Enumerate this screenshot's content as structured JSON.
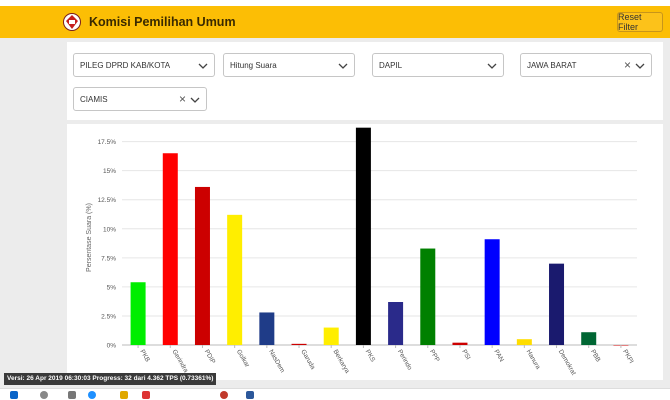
{
  "header": {
    "title": "Komisi Pemilihan Umum",
    "reset_label": "Reset Filter",
    "logo_icon": "kpu-logo-icon",
    "color": "#fcbe05"
  },
  "filters": [
    {
      "value": "PILEG DPRD KAB/KOTA",
      "clearable": false
    },
    {
      "value": "Hitung Suara",
      "clearable": false
    },
    {
      "value": "DAPIL",
      "clearable": false
    },
    {
      "value": "JAWA BARAT",
      "clearable": true
    },
    {
      "value": "CIAMIS",
      "clearable": true
    }
  ],
  "chart_data": {
    "type": "bar",
    "ylabel": "Persentase Suara (%)",
    "ylim": [
      0,
      18.5
    ],
    "yticks": [
      "0%",
      "2.5%",
      "5%",
      "7.5%",
      "10%",
      "12.5%",
      "15%",
      "17.5%"
    ],
    "grid": true,
    "categories": [
      "PKB",
      "Gerindra",
      "PDIP",
      "Golkar",
      "NasDem",
      "Garuda",
      "Berkarya",
      "PKS",
      "Perindo",
      "PPP",
      "PSI",
      "PAN",
      "Hanura",
      "Demokrat",
      "PBB",
      "PKPI"
    ],
    "values": [
      5.4,
      16.5,
      13.6,
      11.2,
      2.8,
      0.1,
      1.5,
      18.7,
      3.7,
      8.3,
      0.2,
      9.1,
      0.5,
      7.0,
      1.1,
      0.0
    ],
    "colors": [
      "#00ee00",
      "#ff0000",
      "#cc0000",
      "#ffee00",
      "#1f3c88",
      "#cc0000",
      "#ffee00",
      "#000000",
      "#2a2a8a",
      "#008000",
      "#cc0000",
      "#0000ff",
      "#ffdd00",
      "#1a1a6e",
      "#006633",
      "#cc0000"
    ]
  },
  "status_text": "Versi: 26 Apr 2019 06:30:03 Progress: 32 dari 4.362 TPS (0.73361%)",
  "taskbar_icons": [
    "windows-icon",
    "search-icon",
    "task-view-icon",
    "edge-icon",
    "explorer-icon",
    "chrome-icon",
    "store-icon",
    "word-icon"
  ]
}
